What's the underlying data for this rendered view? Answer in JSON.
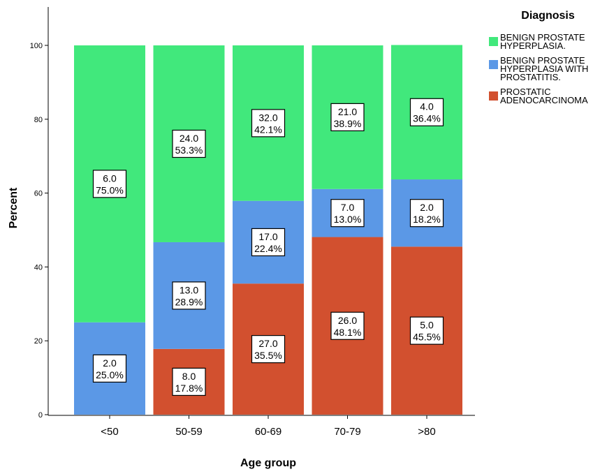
{
  "chart_data": {
    "type": "bar",
    "stacked": true,
    "xlabel": "Age group",
    "ylabel": "Percent",
    "ylim": [
      0,
      100
    ],
    "yticks": [
      0,
      20,
      40,
      60,
      80,
      100
    ],
    "categories": [
      "<50",
      "50-59",
      "60-69",
      "70-79",
      ">80"
    ],
    "legend": {
      "title": "Diagnosis",
      "placement": "right"
    },
    "series": [
      {
        "name": "PROSTATIC\nADENOCARCINOMA",
        "color": "#d2502f",
        "values": [
          0,
          17.8,
          35.5,
          48.1,
          45.5
        ],
        "counts": [
          null,
          "8.0",
          "27.0",
          "26.0",
          "5.0"
        ],
        "labels": [
          null,
          "17.8%",
          "35.5%",
          "48.1%",
          "45.5%"
        ]
      },
      {
        "name": "BENIGN PROSTATE\nHYPERPLASIA WITH\nPROSTATITIS.",
        "color": "#5b98e6",
        "values": [
          25.0,
          28.9,
          22.4,
          13.0,
          18.2
        ],
        "counts": [
          "2.0",
          "13.0",
          "17.0",
          "7.0",
          "2.0"
        ],
        "labels": [
          "25.0%",
          "28.9%",
          "22.4%",
          "13.0%",
          "18.2%"
        ]
      },
      {
        "name": "BENIGN PROSTATE\nHYPERPLASIA.",
        "color": "#41e87c",
        "values": [
          75.0,
          53.3,
          42.1,
          38.9,
          36.4
        ],
        "counts": [
          "6.0",
          "24.0",
          "32.0",
          "21.0",
          "4.0"
        ],
        "labels": [
          "75.0%",
          "53.3%",
          "42.1%",
          "38.9%",
          "36.4%"
        ]
      }
    ]
  }
}
